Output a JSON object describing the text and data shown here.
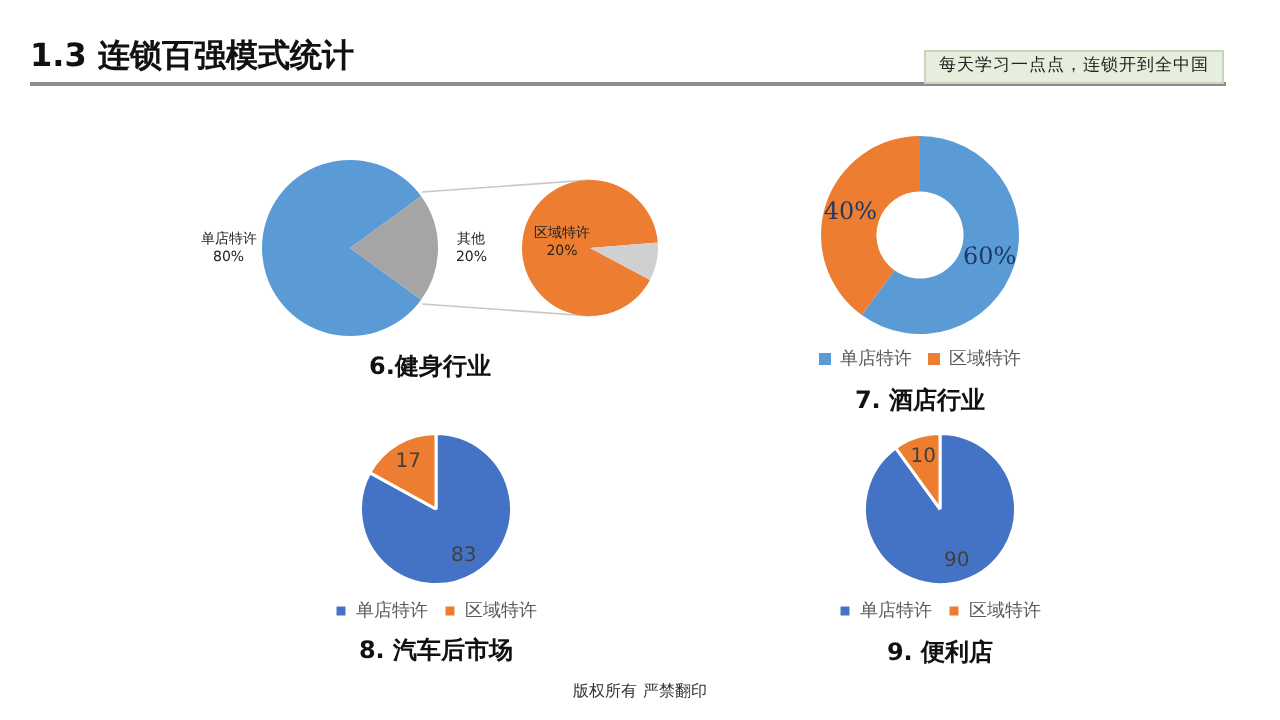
{
  "chart_data": [
    {
      "type": "other",
      "title": "1.3  连锁百强模式统计",
      "annotations": [
        "每天学习一点点，连锁开到全中国",
        "版权所有  严禁翻印"
      ]
    },
    {
      "type": "pie",
      "title": "6.健身行业",
      "categories": [
        "单店特许",
        "其他"
      ],
      "values": [
        80,
        20
      ],
      "colors": [
        "#5b9bd5",
        "#a5a5a5"
      ],
      "value_labels": [
        "80%",
        "20%"
      ]
    },
    {
      "type": "pie",
      "categories": [
        "区域特许",
        null
      ],
      "values": [
        20,
        2
      ],
      "colors": [
        "#ed7d31",
        "#d0d0d0"
      ],
      "value_labels": [
        "20%",
        null
      ]
    },
    {
      "type": "donut",
      "title": "7. 酒店行业",
      "categories": [
        "单店特许",
        "区域特许"
      ],
      "values": [
        60,
        40
      ],
      "colors": [
        "#5b9bd5",
        "#ed7d31"
      ],
      "value_labels": [
        "60%",
        "40%"
      ],
      "legend": "bottom"
    },
    {
      "type": "pie",
      "title": "8. 汽车后市场",
      "categories": [
        "单店特许",
        "区域特许"
      ],
      "values": [
        83,
        17
      ],
      "colors": [
        "#4472c4",
        "#ed7d31"
      ],
      "data_labels": true,
      "legend": "bottom"
    },
    {
      "type": "pie",
      "title": "9. 便利店",
      "categories": [
        "单店特许",
        "区域特许"
      ],
      "values": [
        90,
        10
      ],
      "colors": [
        "#4472c4",
        "#ed7d31"
      ],
      "data_labels": true,
      "legend": "bottom"
    }
  ]
}
